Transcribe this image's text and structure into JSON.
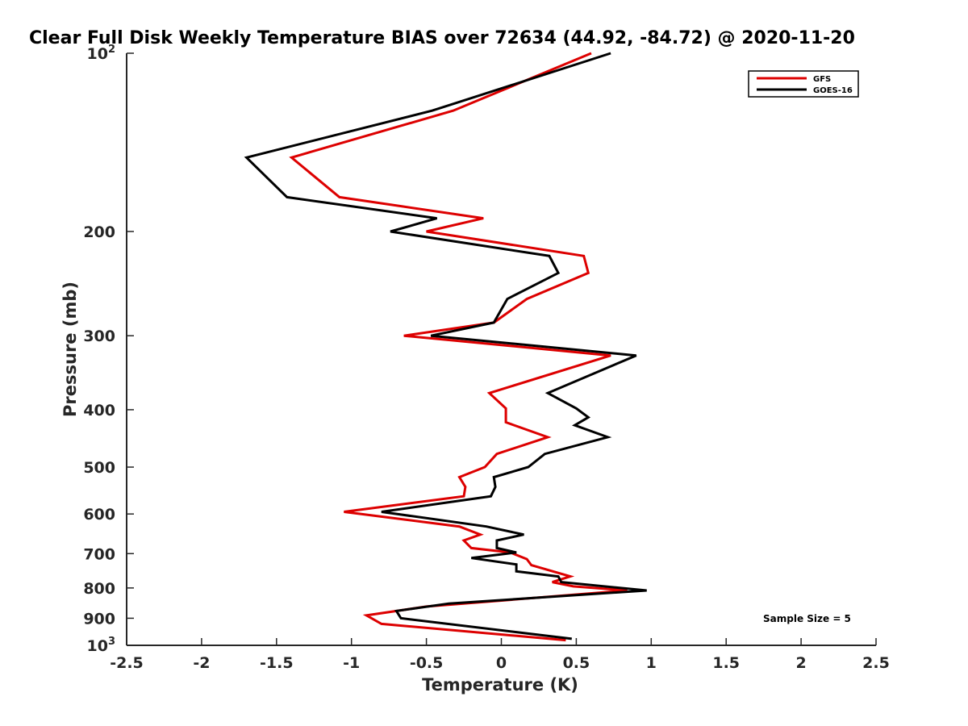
{
  "chart_data": {
    "type": "line",
    "title": "Clear Full Disk Weekly Temperature BIAS over 72634 (44.92, -84.72) @ 2020-11-20",
    "xlabel": "Temperature (K)",
    "ylabel": "Pressure (mb)",
    "xlim": [
      -2.5,
      2.5
    ],
    "ylim": [
      100,
      1000
    ],
    "y_scale": "log",
    "y_reversed": true,
    "x_ticks": [
      "-2.5",
      "-2",
      "-1.5",
      "-1",
      "-0.5",
      "0",
      "0.5",
      "1",
      "1.5",
      "2",
      "2.5"
    ],
    "y_ticks": [
      {
        "value": 100,
        "base": "10",
        "exp": "2"
      },
      {
        "value": 200,
        "label": "200"
      },
      {
        "value": 300,
        "label": "300"
      },
      {
        "value": 400,
        "label": "400"
      },
      {
        "value": 500,
        "label": "500"
      },
      {
        "value": 600,
        "label": "600"
      },
      {
        "value": 700,
        "label": "700"
      },
      {
        "value": 800,
        "label": "800"
      },
      {
        "value": 900,
        "label": "900"
      },
      {
        "value": 1000,
        "base": "10",
        "exp": "3"
      }
    ],
    "legend_position": "top-right",
    "annotation": "Sample Size = 5",
    "series": [
      {
        "name": "GFS",
        "color": "#dd0000",
        "points": [
          [
            0.6,
            100
          ],
          [
            -0.32,
            125
          ],
          [
            -1.4,
            150
          ],
          [
            -1.08,
            175
          ],
          [
            -0.12,
            190
          ],
          [
            -0.5,
            200
          ],
          [
            0.55,
            220
          ],
          [
            0.58,
            235
          ],
          [
            0.17,
            260
          ],
          [
            -0.05,
            285
          ],
          [
            -0.65,
            300
          ],
          [
            0.73,
            324
          ],
          [
            -0.08,
            375
          ],
          [
            0.03,
            398
          ],
          [
            0.03,
            420
          ],
          [
            0.31,
            445
          ],
          [
            -0.03,
            475
          ],
          [
            -0.11,
            500
          ],
          [
            -0.28,
            520
          ],
          [
            -0.24,
            540
          ],
          [
            -0.25,
            560
          ],
          [
            -1.05,
            595
          ],
          [
            -0.28,
            630
          ],
          [
            -0.14,
            650
          ],
          [
            -0.25,
            665
          ],
          [
            -0.2,
            685
          ],
          [
            0.06,
            697
          ],
          [
            0.17,
            715
          ],
          [
            0.2,
            732
          ],
          [
            0.46,
            765
          ],
          [
            0.34,
            782
          ],
          [
            0.48,
            795
          ],
          [
            0.84,
            808
          ],
          [
            -0.5,
            860
          ],
          [
            -0.9,
            890
          ],
          [
            -0.8,
            920
          ],
          [
            0.43,
            980
          ]
        ]
      },
      {
        "name": "GOES-16",
        "color": "#000000",
        "points": [
          [
            0.73,
            100
          ],
          [
            -0.46,
            125
          ],
          [
            -1.7,
            150
          ],
          [
            -1.43,
            175
          ],
          [
            -0.43,
            190
          ],
          [
            -0.74,
            200
          ],
          [
            0.32,
            220
          ],
          [
            0.38,
            235
          ],
          [
            0.04,
            260
          ],
          [
            -0.05,
            285
          ],
          [
            -0.47,
            300
          ],
          [
            0.9,
            324
          ],
          [
            0.31,
            375
          ],
          [
            0.5,
            398
          ],
          [
            0.58,
            412
          ],
          [
            0.49,
            425
          ],
          [
            0.71,
            445
          ],
          [
            0.29,
            475
          ],
          [
            0.18,
            500
          ],
          [
            -0.05,
            520
          ],
          [
            -0.04,
            540
          ],
          [
            -0.07,
            560
          ],
          [
            -0.8,
            595
          ],
          [
            -0.1,
            630
          ],
          [
            0.15,
            650
          ],
          [
            -0.03,
            665
          ],
          [
            -0.03,
            685
          ],
          [
            0.1,
            697
          ],
          [
            -0.2,
            712
          ],
          [
            0.1,
            730
          ],
          [
            0.1,
            750
          ],
          [
            0.38,
            765
          ],
          [
            0.4,
            782
          ],
          [
            0.97,
            808
          ],
          [
            -0.35,
            850
          ],
          [
            -0.7,
            875
          ],
          [
            -0.67,
            900
          ],
          [
            0.1,
            950
          ],
          [
            0.47,
            975
          ]
        ]
      }
    ]
  }
}
